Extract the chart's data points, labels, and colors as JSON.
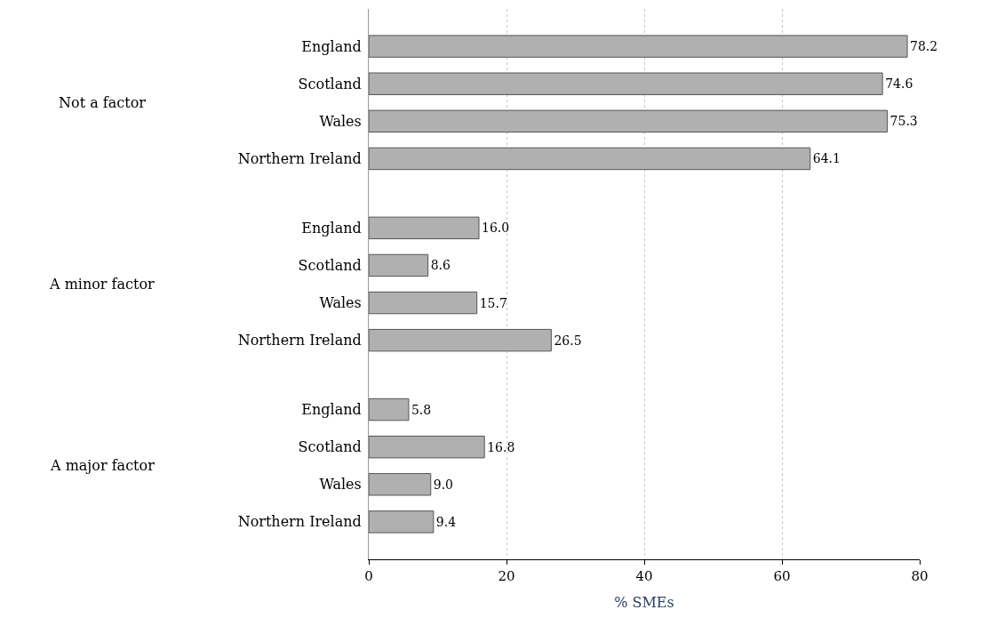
{
  "chart_data": {
    "type": "bar",
    "orientation": "horizontal",
    "xlabel": "% SMEs",
    "categories": [
      "England",
      "Scotland",
      "Wales",
      "Northern Ireland",
      "England",
      "Scotland",
      "Wales",
      "Northern Ireland",
      "England",
      "Scotland",
      "Wales",
      "Northern Ireland"
    ],
    "annotations": [
      "Not a factor",
      "A minor factor",
      "A major factor"
    ],
    "values": [
      78.2,
      74.6,
      75.3,
      64.1,
      16.0,
      8.6,
      15.7,
      26.5,
      5.8,
      16.8,
      9.0,
      9.4
    ],
    "value_labels": [
      "78.2",
      "74.6",
      "75.3",
      "64.1",
      "16.0",
      "8.6",
      "15.7",
      "26.5",
      "5.8",
      "16.8",
      "9.0",
      "9.4"
    ],
    "color": "#b0b0b0",
    "xlim": [
      0,
      80
    ],
    "xticks": [
      0,
      20,
      40,
      60,
      80
    ],
    "grid": "x",
    "legend": false
  }
}
